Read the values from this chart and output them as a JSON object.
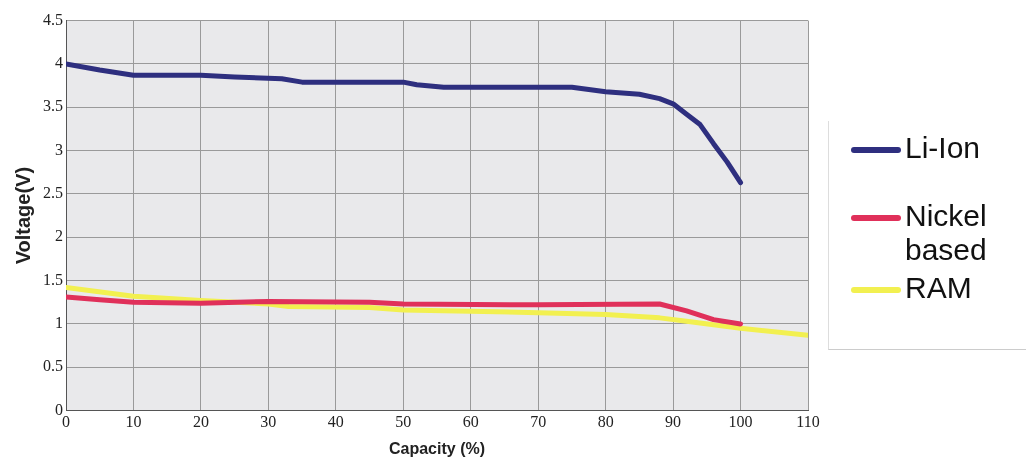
{
  "chart_data": {
    "type": "line",
    "xlabel": "Capacity (%)",
    "ylabel": "Voltage(V)",
    "xlim": [
      0,
      110
    ],
    "xticks": [
      0,
      10,
      20,
      30,
      40,
      50,
      60,
      70,
      80,
      90,
      100,
      110
    ],
    "ylim": [
      0,
      4.5
    ],
    "yticks": [
      0,
      0.5,
      1,
      1.5,
      2,
      2.5,
      3,
      3.5,
      4,
      4.5
    ],
    "grid": true,
    "legend": "right",
    "marker": "none",
    "line_style": "solid",
    "series": [
      {
        "name": "Li-Ion",
        "color": "#2e2f7f",
        "x": [
          0,
          5,
          10,
          20,
          25,
          32,
          35,
          50,
          52,
          56,
          75,
          80,
          85,
          88,
          90,
          92,
          94,
          96,
          98,
          100
        ],
        "values": [
          4.0,
          3.93,
          3.87,
          3.87,
          3.85,
          3.83,
          3.79,
          3.79,
          3.76,
          3.73,
          3.73,
          3.68,
          3.65,
          3.6,
          3.54,
          3.42,
          3.3,
          3.08,
          2.87,
          2.63
        ]
      },
      {
        "name": "Nickel based",
        "color": "#e0305a",
        "x": [
          0,
          5,
          10,
          20,
          30,
          45,
          50,
          70,
          88,
          92,
          96,
          100
        ],
        "values": [
          1.31,
          1.28,
          1.25,
          1.24,
          1.26,
          1.25,
          1.23,
          1.22,
          1.23,
          1.15,
          1.05,
          1.0
        ]
      },
      {
        "name": "RAM",
        "color": "#f2f050",
        "x": [
          0,
          10,
          20,
          30,
          33,
          45,
          50,
          70,
          80,
          88,
          92,
          100,
          110
        ],
        "values": [
          1.42,
          1.32,
          1.27,
          1.23,
          1.2,
          1.19,
          1.16,
          1.13,
          1.11,
          1.07,
          1.03,
          0.95,
          0.87
        ]
      }
    ]
  }
}
